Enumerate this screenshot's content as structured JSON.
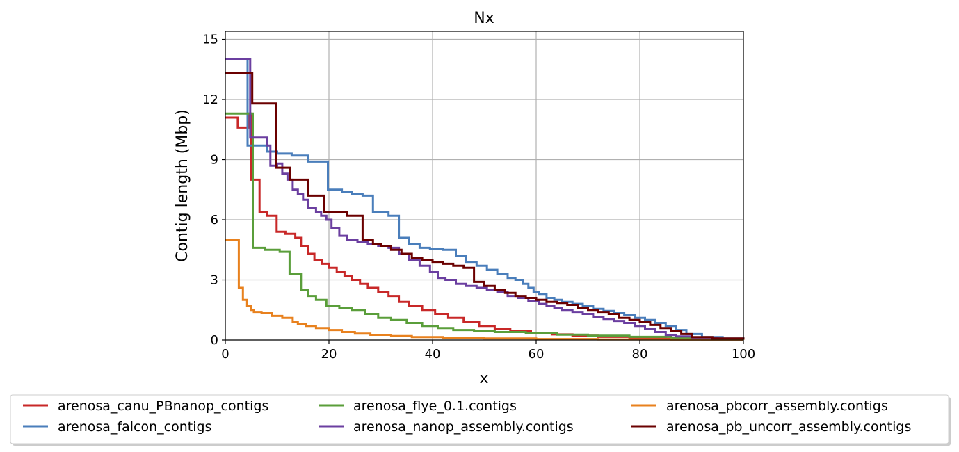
{
  "chart_data": {
    "type": "line",
    "title": "Nx",
    "xlabel": "x",
    "ylabel": "Contig length (Mbp)",
    "xlim": [
      0,
      100
    ],
    "ylim": [
      0,
      15.4
    ],
    "xticks": [
      "0",
      "20",
      "40",
      "60",
      "80",
      "100"
    ],
    "yticks": [
      "0",
      "3",
      "6",
      "9",
      "12",
      "15"
    ],
    "grid": true,
    "step": true,
    "legend_position": "bottom",
    "series": [
      {
        "name": "arenosa_canu_PBnanop_contigs",
        "color": "#c82828",
        "x": [
          0,
          2.4,
          4.6,
          4.9,
          5.3,
          6.6,
          8.0,
          9.9,
          11.6,
          13.5,
          14.6,
          16.0,
          17.2,
          18.6,
          20.0,
          21.5,
          23.0,
          24.5,
          26.0,
          27.5,
          29.5,
          31.5,
          33.5,
          35.5,
          38.0,
          40.5,
          43.0,
          46.0,
          49.0,
          52.0,
          55.0,
          59.0,
          63.0,
          67.0,
          72.0,
          78.0,
          85.0,
          92.0,
          100
        ],
        "y": [
          11.1,
          10.6,
          11.3,
          8.0,
          8.0,
          6.4,
          6.2,
          5.4,
          5.3,
          5.1,
          4.7,
          4.3,
          4.0,
          3.8,
          3.6,
          3.4,
          3.2,
          3.0,
          2.8,
          2.6,
          2.4,
          2.2,
          1.9,
          1.7,
          1.5,
          1.3,
          1.1,
          0.9,
          0.7,
          0.55,
          0.45,
          0.35,
          0.28,
          0.22,
          0.16,
          0.1,
          0.06,
          0.03,
          0.02
        ]
      },
      {
        "name": "arenosa_falcon_contigs",
        "color": "#4a7ebb",
        "x": [
          0,
          4.3,
          8.0,
          10.0,
          12.8,
          16.0,
          19.8,
          22.5,
          24.5,
          26.5,
          28.5,
          31.5,
          33.5,
          35.5,
          37.5,
          39.5,
          42.0,
          44.5,
          46.5,
          48.5,
          50.5,
          52.5,
          54.5,
          56.0,
          57.5,
          58.5,
          59.5,
          60.5,
          62.0,
          63.5,
          65.0,
          67.0,
          69.0,
          71.0,
          73.0,
          75.0,
          77.0,
          79.0,
          81.0,
          83.0,
          85.0,
          87.0,
          89.0,
          92.0,
          96.0,
          100
        ],
        "y": [
          14.0,
          9.7,
          9.4,
          9.3,
          9.2,
          8.9,
          7.5,
          7.4,
          7.3,
          7.2,
          6.4,
          6.2,
          5.1,
          4.8,
          4.6,
          4.55,
          4.5,
          4.2,
          3.9,
          3.7,
          3.5,
          3.3,
          3.1,
          3.0,
          2.8,
          2.6,
          2.4,
          2.3,
          2.1,
          2.0,
          1.9,
          1.8,
          1.7,
          1.55,
          1.45,
          1.35,
          1.25,
          1.1,
          1.0,
          0.85,
          0.7,
          0.5,
          0.3,
          0.15,
          0.08,
          0.02
        ]
      },
      {
        "name": "arenosa_flye_0.1.contigs",
        "color": "#5a9e3a",
        "x": [
          0,
          5.3,
          7.6,
          10.5,
          12.4,
          14.6,
          16.0,
          17.5,
          19.5,
          22.0,
          24.5,
          27.0,
          29.5,
          32.0,
          35.0,
          38.0,
          41.0,
          44.0,
          48.0,
          52.0,
          58.0,
          64.0,
          70.0,
          78.0,
          86.0,
          94.0,
          100
        ],
        "y": [
          11.3,
          4.6,
          4.5,
          4.4,
          3.3,
          2.5,
          2.2,
          2.0,
          1.7,
          1.6,
          1.5,
          1.3,
          1.1,
          1.0,
          0.85,
          0.7,
          0.6,
          0.5,
          0.45,
          0.4,
          0.33,
          0.27,
          0.22,
          0.16,
          0.1,
          0.05,
          0.02
        ]
      },
      {
        "name": "arenosa_nanop_assembly.contigs",
        "color": "#6b3fa0",
        "x": [
          0,
          4.8,
          8.0,
          8.7,
          10.0,
          11.0,
          12.0,
          13.0,
          14.0,
          15.0,
          16.0,
          17.5,
          18.5,
          19.5,
          20.5,
          22.0,
          23.5,
          25.5,
          27.5,
          29.5,
          31.5,
          33.5,
          35.5,
          37.5,
          39.5,
          41.0,
          42.5,
          44.5,
          46.5,
          48.5,
          50.5,
          52.5,
          54.5,
          56.5,
          58.5,
          60.5,
          62.0,
          63.5,
          65.0,
          67.0,
          69.0,
          71.0,
          73.0,
          75.0,
          77.0,
          79.0,
          81.0,
          83.0,
          85.0,
          87.0,
          90.0,
          95.0,
          100
        ],
        "y": [
          14.0,
          10.1,
          9.7,
          8.7,
          8.8,
          8.3,
          8.0,
          7.5,
          7.3,
          7.0,
          6.6,
          6.4,
          6.2,
          6.0,
          5.6,
          5.2,
          5.0,
          4.9,
          4.8,
          4.7,
          4.6,
          4.3,
          4.0,
          3.7,
          3.4,
          3.1,
          3.0,
          2.8,
          2.7,
          2.6,
          2.5,
          2.4,
          2.2,
          2.1,
          1.95,
          1.8,
          1.7,
          1.6,
          1.5,
          1.4,
          1.3,
          1.15,
          1.05,
          0.95,
          0.85,
          0.7,
          0.55,
          0.4,
          0.25,
          0.18,
          0.1,
          0.05,
          0.02
        ]
      },
      {
        "name": "arenosa_pbcorr_assembly.contigs",
        "color": "#e8811e",
        "x": [
          0,
          2.6,
          3.4,
          4.2,
          4.9,
          5.5,
          7.0,
          9.0,
          11.0,
          13.0,
          14.0,
          15.5,
          17.5,
          20.0,
          22.5,
          25.0,
          28.0,
          32.0,
          36.0,
          42.0,
          50.0,
          60.0,
          72.0,
          86.0,
          100
        ],
        "y": [
          5.0,
          2.6,
          2.0,
          1.7,
          1.5,
          1.4,
          1.35,
          1.2,
          1.1,
          0.9,
          0.8,
          0.7,
          0.6,
          0.5,
          0.4,
          0.32,
          0.26,
          0.2,
          0.15,
          0.11,
          0.08,
          0.05,
          0.03,
          0.02,
          0.01
        ]
      },
      {
        "name": "arenosa_pb_uncorr_assembly.contigs",
        "color": "#6b0000",
        "x": [
          0,
          5.2,
          9.8,
          12.5,
          16.0,
          19.0,
          23.5,
          26.5,
          28.5,
          30.0,
          32.0,
          34.0,
          36.0,
          38.0,
          40.0,
          42.0,
          44.0,
          46.0,
          48.0,
          50.0,
          52.0,
          54.0,
          56.0,
          58.0,
          60.0,
          62.0,
          64.0,
          66.0,
          68.0,
          70.0,
          72.0,
          74.0,
          76.0,
          78.0,
          80.0,
          82.0,
          84.0,
          86.0,
          88.0,
          90.0,
          94.0,
          100
        ],
        "y": [
          13.3,
          11.8,
          8.6,
          8.0,
          7.2,
          6.4,
          6.2,
          5.0,
          4.8,
          4.7,
          4.5,
          4.3,
          4.1,
          4.0,
          3.9,
          3.8,
          3.7,
          3.6,
          2.9,
          2.7,
          2.5,
          2.35,
          2.2,
          2.1,
          2.0,
          1.9,
          1.85,
          1.75,
          1.6,
          1.5,
          1.4,
          1.3,
          1.1,
          1.0,
          0.9,
          0.75,
          0.6,
          0.45,
          0.3,
          0.15,
          0.08,
          0.02
        ]
      }
    ]
  }
}
